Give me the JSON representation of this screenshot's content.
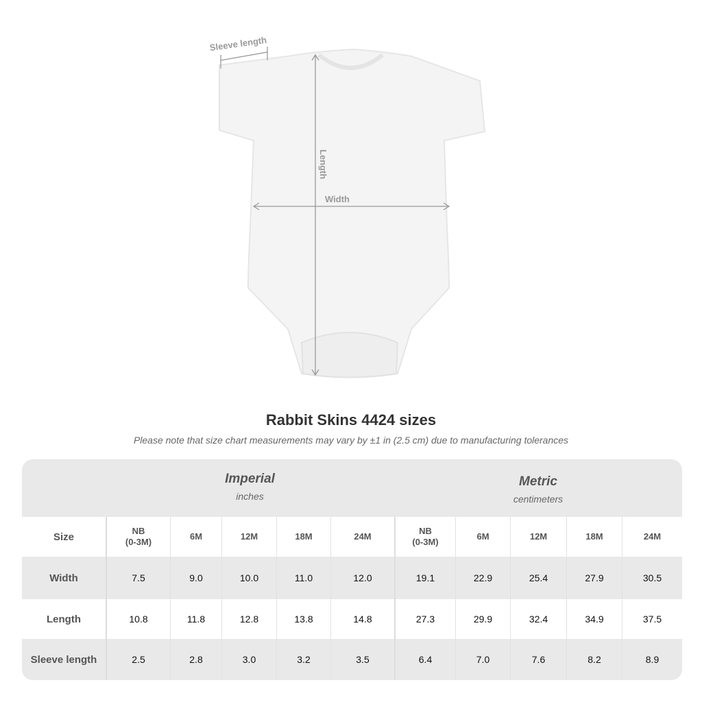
{
  "diagram": {
    "sleeve_label": "Sleeve length",
    "length_label": "Length",
    "width_label": "Width"
  },
  "title": "Rabbit Skins 4424 sizes",
  "note": "Please note that size chart measurements may vary by ±1 in (2.5 cm) due to manufacturing tolerances",
  "groups": [
    {
      "name": "Imperial",
      "unit": "inches"
    },
    {
      "name": "Metric",
      "unit": "centimeters"
    }
  ],
  "header": {
    "label": "Size",
    "sizes": [
      "NB\n(0-3M)",
      "6M",
      "12M",
      "18M",
      "24M"
    ]
  },
  "rows": [
    {
      "label": "Width",
      "imperial": [
        "7.5",
        "9.0",
        "10.0",
        "11.0",
        "12.0"
      ],
      "metric": [
        "19.1",
        "22.9",
        "25.4",
        "27.9",
        "30.5"
      ]
    },
    {
      "label": "Length",
      "imperial": [
        "10.8",
        "11.8",
        "12.8",
        "13.8",
        "14.8"
      ],
      "metric": [
        "27.3",
        "29.9",
        "32.4",
        "34.9",
        "37.5"
      ]
    },
    {
      "label": "Sleeve length",
      "imperial": [
        "2.5",
        "2.8",
        "3.0",
        "3.2",
        "3.5"
      ],
      "metric": [
        "6.4",
        "7.0",
        "7.6",
        "8.2",
        "8.9"
      ]
    }
  ],
  "colors": {
    "header_bg": "#e9e9e9",
    "garment": "#f4f4f4",
    "dimension_lines": "#999999"
  }
}
